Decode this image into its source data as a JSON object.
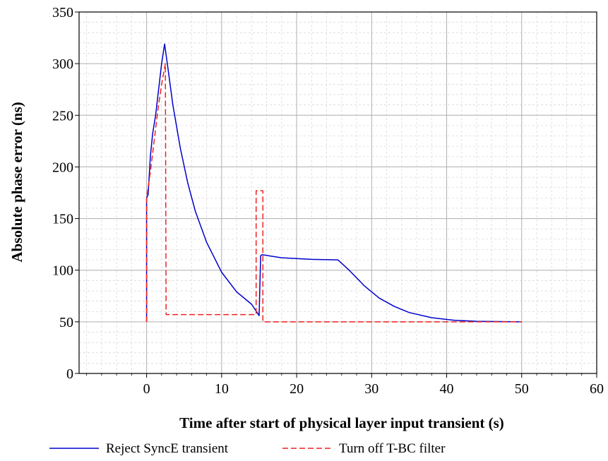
{
  "chart_data": {
    "type": "line",
    "title": "",
    "xlabel": "Time after start of physical layer input transient (s)",
    "ylabel": "Absolute phase error (ns)",
    "xlim": [
      -9,
      60
    ],
    "ylim": [
      0,
      350
    ],
    "xticks": [
      0,
      10,
      20,
      30,
      40,
      50,
      60
    ],
    "yticks": [
      0,
      50,
      100,
      150,
      200,
      250,
      300,
      350
    ],
    "grid": true,
    "minor_grid": true,
    "legend_position": "bottom",
    "series": [
      {
        "name": "Reject SyncE transient",
        "color": "#0000cc",
        "style": "solid",
        "points": [
          [
            0,
            50
          ],
          [
            0,
            170
          ],
          [
            0.2,
            173
          ],
          [
            0.5,
            210
          ],
          [
            0.8,
            232
          ],
          [
            1.2,
            250
          ],
          [
            1.6,
            275
          ],
          [
            2,
            300
          ],
          [
            2.4,
            319
          ],
          [
            2.8,
            298
          ],
          [
            3.5,
            260
          ],
          [
            4.5,
            218
          ],
          [
            5.5,
            184
          ],
          [
            6.5,
            157
          ],
          [
            8,
            127
          ],
          [
            10,
            98
          ],
          [
            12,
            79
          ],
          [
            14,
            67
          ],
          [
            15,
            56
          ],
          [
            15,
            56
          ],
          [
            15.2,
            114
          ],
          [
            15.4,
            115
          ],
          [
            18,
            112
          ],
          [
            22,
            110.5
          ],
          [
            25.5,
            110
          ],
          [
            27,
            100
          ],
          [
            29,
            85
          ],
          [
            31,
            73
          ],
          [
            33,
            65
          ],
          [
            35,
            59
          ],
          [
            38,
            54
          ],
          [
            41,
            51.5
          ],
          [
            44,
            50.5
          ],
          [
            50,
            50
          ]
        ]
      },
      {
        "name": "Turn off T-BC filter",
        "color": "#ee2222",
        "style": "dashed",
        "points": [
          [
            0,
            50
          ],
          [
            0,
            170
          ],
          [
            0.5,
            195
          ],
          [
            1,
            225
          ],
          [
            1.5,
            255
          ],
          [
            2,
            280
          ],
          [
            2.5,
            300
          ],
          [
            2.6,
            57
          ],
          [
            14.6,
            57
          ],
          [
            14.6,
            177
          ],
          [
            15.5,
            177
          ],
          [
            15.5,
            50
          ],
          [
            50,
            50
          ]
        ]
      }
    ]
  }
}
